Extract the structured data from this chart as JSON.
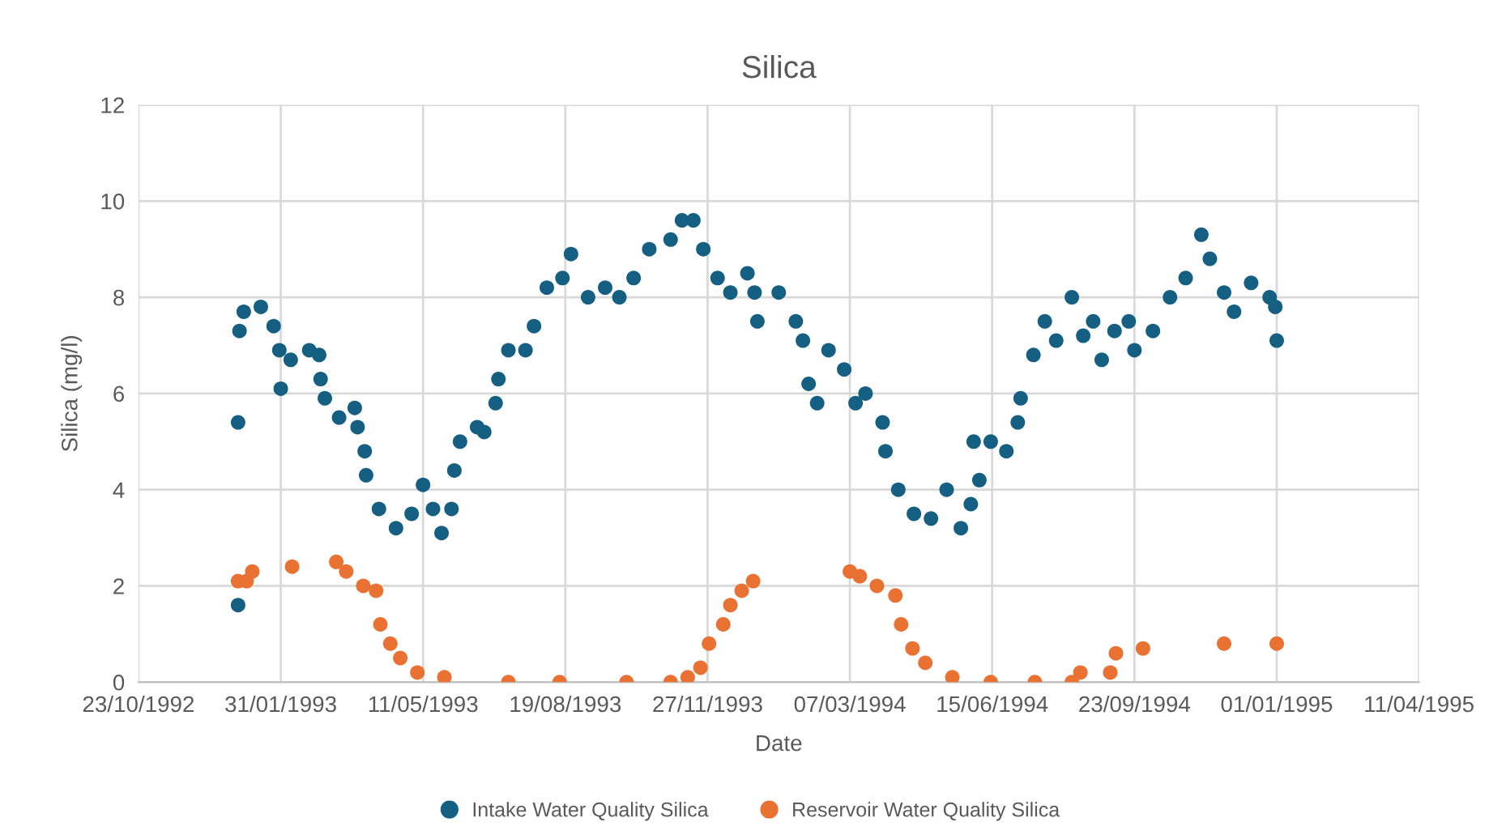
{
  "chart_data": {
    "type": "scatter",
    "title": "Silica",
    "xlabel": "Date",
    "ylabel": "Silica (mg/l)",
    "xlim": [
      "1992-10-23",
      "1995-04-11"
    ],
    "xticks": [
      {
        "value": "1992-10-23",
        "label": "23/10/1992"
      },
      {
        "value": "1993-01-31",
        "label": "31/01/1993"
      },
      {
        "value": "1993-05-11",
        "label": "11/05/1993"
      },
      {
        "value": "1993-08-19",
        "label": "19/08/1993"
      },
      {
        "value": "1993-11-27",
        "label": "27/11/1993"
      },
      {
        "value": "1994-03-07",
        "label": "07/03/1994"
      },
      {
        "value": "1994-06-15",
        "label": "15/06/1994"
      },
      {
        "value": "1994-09-23",
        "label": "23/09/1994"
      },
      {
        "value": "1995-01-01",
        "label": "01/01/1995"
      },
      {
        "value": "1995-04-11",
        "label": "11/04/1995"
      }
    ],
    "ylim": [
      0,
      12
    ],
    "yticks": [
      0,
      2,
      4,
      6,
      8,
      10,
      12
    ],
    "grid": true,
    "legend": "bottom",
    "marker": "circle",
    "series": [
      {
        "name": "Intake Water Quality Silica",
        "color": "#156082",
        "x": [
          "1993-01-01",
          "1993-01-01",
          "1993-01-02",
          "1993-01-05",
          "1993-01-17",
          "1993-01-26",
          "1993-01-30",
          "1993-01-31",
          "1993-02-07",
          "1993-02-20",
          "1993-02-27",
          "1993-02-28",
          "1993-03-03",
          "1993-03-13",
          "1993-03-24",
          "1993-03-26",
          "1993-03-31",
          "1993-04-01",
          "1993-04-10",
          "1993-04-22",
          "1993-05-03",
          "1993-05-11",
          "1993-05-18",
          "1993-05-24",
          "1993-05-31",
          "1993-06-02",
          "1993-06-06",
          "1993-06-18",
          "1993-06-23",
          "1993-07-01",
          "1993-07-03",
          "1993-07-10",
          "1993-07-22",
          "1993-07-28",
          "1993-08-06",
          "1993-08-17",
          "1993-08-23",
          "1993-09-04",
          "1993-09-16",
          "1993-09-26",
          "1993-10-06",
          "1993-10-17",
          "1993-11-01",
          "1993-11-09",
          "1993-11-17",
          "1993-11-24",
          "1993-12-04",
          "1993-12-13",
          "1993-12-25",
          "1993-12-30",
          "1994-01-01",
          "1994-01-16",
          "1994-01-28",
          "1994-02-02",
          "1994-02-06",
          "1994-02-12",
          "1994-02-20",
          "1994-03-03",
          "1994-03-11",
          "1994-03-18",
          "1994-03-30",
          "1994-04-01",
          "1994-04-10",
          "1994-04-21",
          "1994-05-03",
          "1994-05-14",
          "1994-05-24",
          "1994-05-31",
          "1994-06-02",
          "1994-06-06",
          "1994-06-14",
          "1994-06-25",
          "1994-07-03",
          "1994-07-05",
          "1994-07-14",
          "1994-07-22",
          "1994-07-30",
          "1994-08-10",
          "1994-08-18",
          "1994-08-25",
          "1994-08-31",
          "1994-09-09",
          "1994-09-19",
          "1994-09-23",
          "1994-10-06",
          "1994-10-18",
          "1994-10-29",
          "1994-11-09",
          "1994-11-15",
          "1994-11-25",
          "1994-12-02",
          "1994-12-14",
          "1994-12-27",
          "1994-12-31",
          "1995-01-01"
        ],
        "values": [
          5.4,
          1.6,
          7.3,
          7.7,
          7.8,
          7.4,
          6.9,
          6.1,
          6.7,
          6.9,
          6.8,
          6.3,
          5.9,
          5.5,
          5.7,
          5.3,
          4.8,
          4.3,
          3.6,
          3.2,
          3.5,
          4.1,
          3.6,
          3.1,
          3.6,
          4.4,
          5.0,
          5.3,
          5.2,
          5.8,
          6.3,
          6.9,
          6.9,
          7.4,
          8.2,
          8.4,
          8.9,
          8.0,
          8.2,
          8.0,
          8.4,
          9.0,
          9.2,
          9.6,
          9.6,
          9.0,
          8.4,
          8.1,
          8.5,
          8.1,
          7.5,
          8.1,
          7.5,
          7.1,
          6.2,
          5.8,
          6.9,
          6.5,
          5.8,
          6.0,
          5.4,
          4.8,
          4.0,
          3.5,
          3.4,
          4.0,
          3.2,
          3.7,
          5.0,
          4.2,
          5.0,
          4.8,
          5.4,
          5.9,
          6.8,
          7.5,
          7.1,
          8.0,
          7.2,
          7.5,
          6.7,
          7.3,
          7.5,
          6.9,
          7.3,
          8.0,
          8.4,
          9.3,
          8.8,
          8.1,
          7.7,
          8.3,
          8.0,
          7.8,
          7.1
        ]
      },
      {
        "name": "Reservoir Water Quality Silica",
        "color": "#e97132",
        "x": [
          "1993-01-01",
          "1993-01-07",
          "1993-01-11",
          "1993-02-08",
          "1993-03-11",
          "1993-03-18",
          "1993-03-30",
          "1993-04-08",
          "1993-04-11",
          "1993-04-18",
          "1993-04-25",
          "1993-05-07",
          "1993-05-26",
          "1993-07-10",
          "1993-08-15",
          "1993-10-01",
          "1993-11-01",
          "1993-11-13",
          "1993-11-22",
          "1993-11-28",
          "1993-12-08",
          "1993-12-13",
          "1993-12-21",
          "1993-12-29",
          "1994-03-07",
          "1994-03-14",
          "1994-03-26",
          "1994-04-08",
          "1994-04-12",
          "1994-04-20",
          "1994-04-29",
          "1994-05-18",
          "1994-06-14",
          "1994-07-15",
          "1994-08-10",
          "1994-08-16",
          "1994-09-06",
          "1994-09-10",
          "1994-09-29",
          "1994-11-25",
          "1995-01-01"
        ],
        "values": [
          2.1,
          2.1,
          2.3,
          2.4,
          2.5,
          2.3,
          2.0,
          1.9,
          1.2,
          0.8,
          0.5,
          0.2,
          0.1,
          0.0,
          0.0,
          0.0,
          0.0,
          0.1,
          0.3,
          0.8,
          1.2,
          1.6,
          1.9,
          2.1,
          2.3,
          2.2,
          2.0,
          1.8,
          1.2,
          0.7,
          0.4,
          0.1,
          0.0,
          0.0,
          0.0,
          0.2,
          0.2,
          0.6,
          0.7,
          0.8,
          0.8
        ]
      }
    ]
  }
}
